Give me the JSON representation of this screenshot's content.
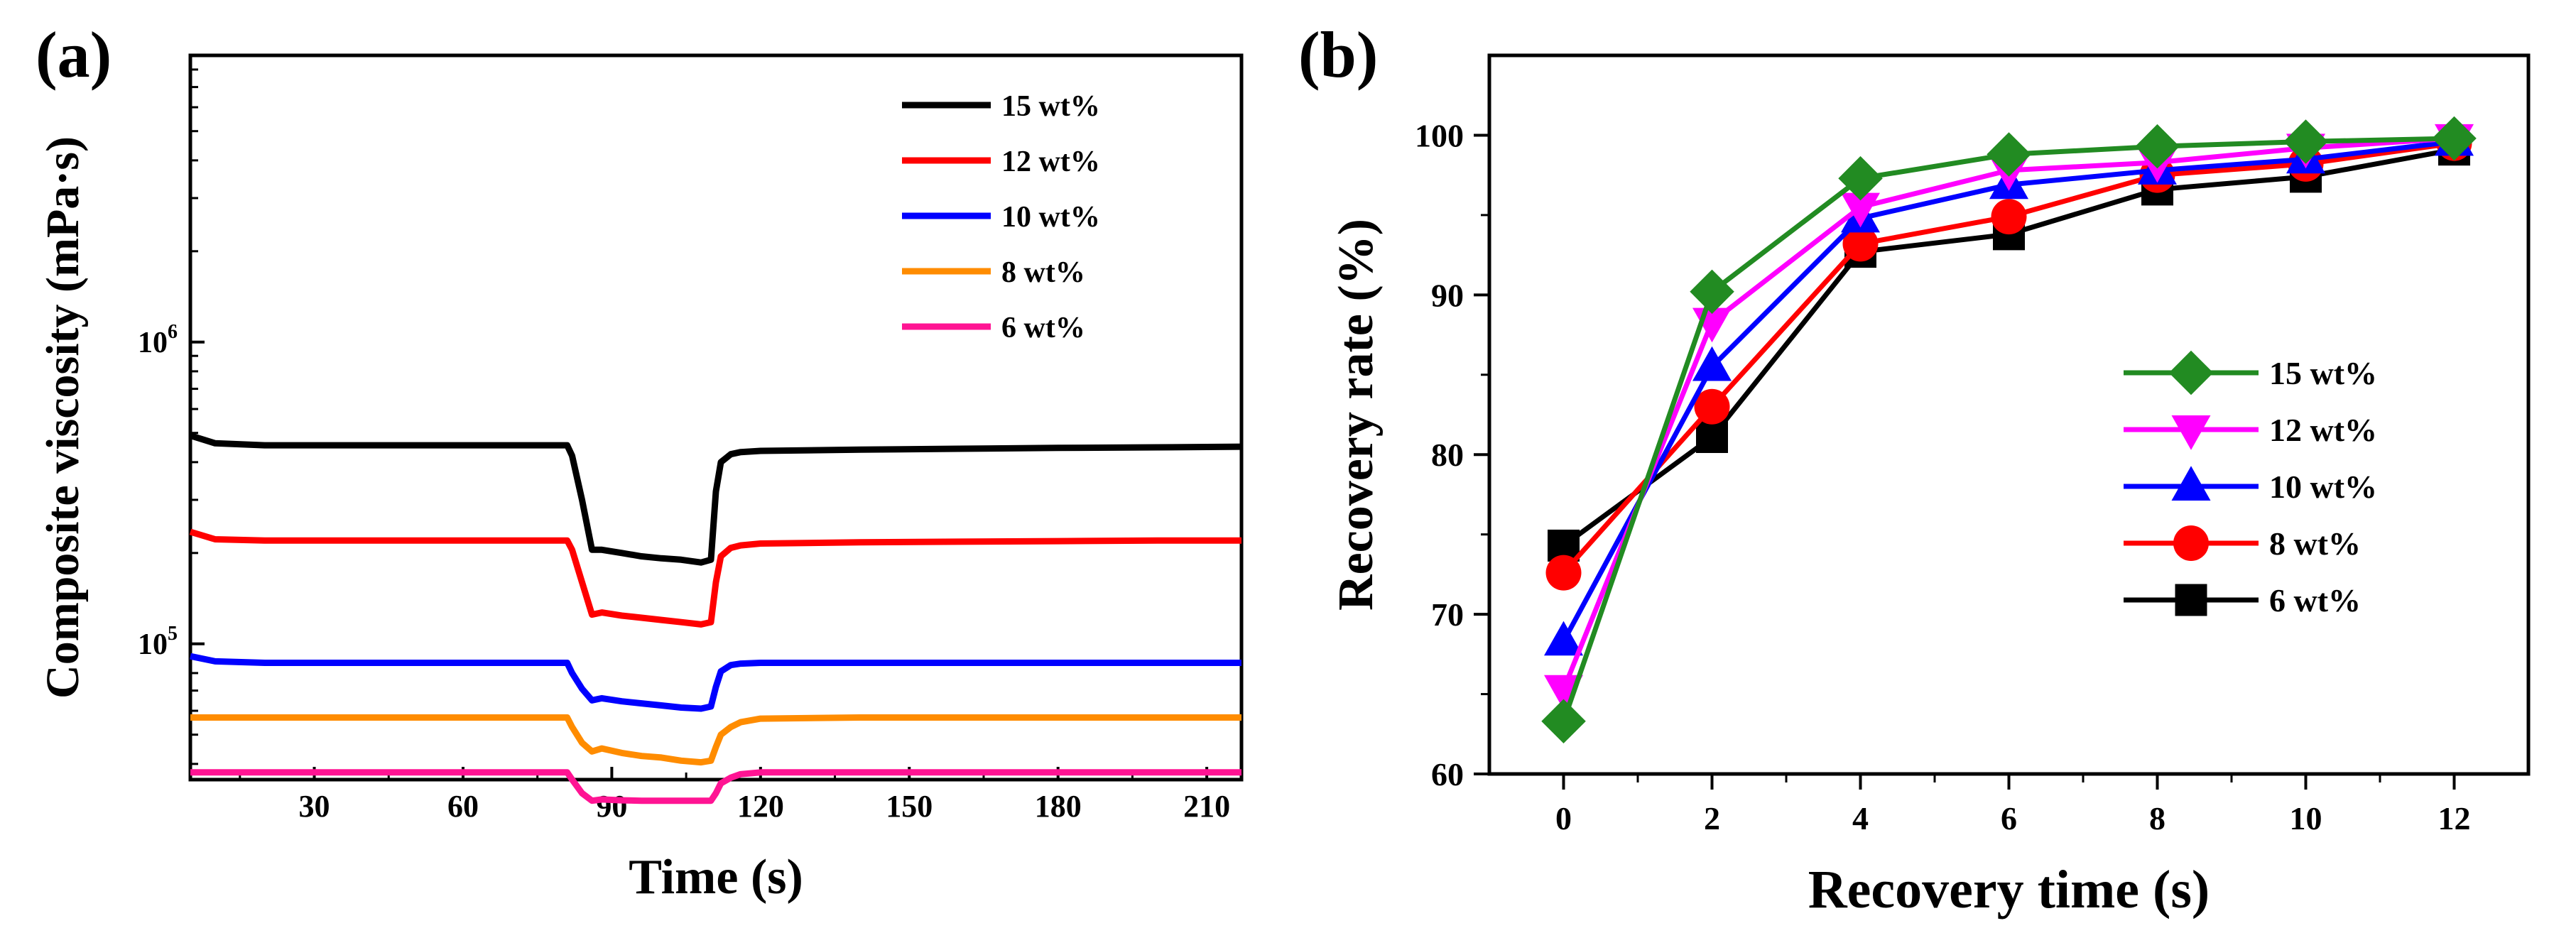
{
  "chart_data": [
    {
      "panel_label": "(a)",
      "type": "line",
      "title": "",
      "xlabel": "Time (s)",
      "ylabel": "Composite viscosity (mPa·s)",
      "xlim": [
        5,
        217
      ],
      "ylim_log10": [
        4.55,
        6.95
      ],
      "yscale": "log",
      "xticks": [
        30,
        60,
        90,
        120,
        150,
        180,
        210
      ],
      "xtick_labels": [
        "30",
        "60",
        "90",
        "120",
        "150",
        "180",
        "210"
      ],
      "yticks": [
        100000,
        1000000
      ],
      "ytick_labels": [
        {
          "base": "10",
          "exp": "5"
        },
        {
          "base": "10",
          "exp": "6"
        }
      ],
      "legend_position": "top-right",
      "series": [
        {
          "name": "15 wt%",
          "color": "#000000",
          "x": [
            5,
            10,
            20,
            40,
            60,
            81,
            82,
            84,
            86,
            88,
            92,
            96,
            100,
            104,
            108,
            110,
            111,
            112,
            114,
            116,
            120,
            140,
            160,
            180,
            200,
            217
          ],
          "y": [
            490000,
            462000,
            455000,
            455000,
            455000,
            455000,
            420000,
            300000,
            205000,
            205000,
            200000,
            195000,
            192000,
            190000,
            186000,
            190000,
            320000,
            400000,
            425000,
            432000,
            436000,
            440000,
            443000,
            446000,
            448000,
            450000
          ]
        },
        {
          "name": "12 wt%",
          "color": "#ff0000",
          "x": [
            5,
            10,
            20,
            40,
            60,
            81,
            82,
            84,
            86,
            88,
            92,
            96,
            100,
            104,
            108,
            110,
            111,
            112,
            114,
            116,
            120,
            140,
            160,
            180,
            200,
            217
          ],
          "y": [
            235000,
            222000,
            220000,
            220000,
            220000,
            220000,
            205000,
            160000,
            125000,
            127000,
            124000,
            122000,
            120000,
            118000,
            116000,
            118000,
            160000,
            195000,
            208000,
            212000,
            215000,
            217000,
            218000,
            219000,
            220000,
            220000
          ]
        },
        {
          "name": "10 wt%",
          "color": "#0000ff",
          "x": [
            5,
            10,
            20,
            40,
            60,
            81,
            82,
            84,
            86,
            88,
            92,
            96,
            100,
            104,
            108,
            110,
            111,
            112,
            114,
            116,
            120,
            140,
            160,
            180,
            200,
            217
          ],
          "y": [
            91000,
            87500,
            86500,
            86500,
            86500,
            86500,
            80000,
            71000,
            65000,
            66000,
            64500,
            63500,
            62500,
            61500,
            61000,
            62000,
            72000,
            81000,
            85000,
            86000,
            86500,
            86500,
            86500,
            86500,
            86500,
            86500
          ]
        },
        {
          "name": "8 wt%",
          "color": "#ff8c00",
          "x": [
            5,
            10,
            20,
            40,
            60,
            81,
            82,
            84,
            86,
            88,
            92,
            96,
            100,
            104,
            108,
            110,
            111,
            112,
            114,
            116,
            120,
            140,
            160,
            180,
            200,
            217
          ],
          "y": [
            57000,
            57000,
            57000,
            57000,
            57000,
            57000,
            53000,
            47000,
            44000,
            45000,
            43500,
            42500,
            42000,
            41000,
            40500,
            41000,
            45500,
            50000,
            53000,
            55000,
            56500,
            57000,
            57000,
            57000,
            57000,
            57000
          ]
        },
        {
          "name": "6 wt%",
          "color": "#ff1493",
          "x": [
            5,
            10,
            20,
            40,
            60,
            81,
            82,
            84,
            86,
            88,
            92,
            96,
            100,
            104,
            108,
            110,
            111,
            112,
            114,
            116,
            120,
            140,
            160,
            180,
            200,
            217
          ],
          "y": [
            37500,
            37500,
            37500,
            37500,
            37500,
            37500,
            35500,
            32000,
            30200,
            30500,
            30300,
            30200,
            30200,
            30200,
            30200,
            30200,
            32000,
            34500,
            36000,
            37000,
            37500,
            37500,
            37500,
            37500,
            37500,
            37500
          ]
        }
      ]
    },
    {
      "panel_label": "(b)",
      "type": "line",
      "title": "",
      "xlabel": "Recovery time (s)",
      "ylabel": "Recovery rate (%)",
      "xlim": [
        -1,
        13
      ],
      "ylim": [
        60,
        105
      ],
      "xticks": [
        0,
        2,
        4,
        6,
        8,
        10,
        12
      ],
      "yticks": [
        60,
        70,
        80,
        90,
        100
      ],
      "legend_position": "bottom-right",
      "series": [
        {
          "name": "15 wt%",
          "color": "#228b22",
          "marker": "diamond",
          "x": [
            0,
            2,
            4,
            6,
            8,
            10,
            12
          ],
          "y": [
            63.3,
            90.2,
            97.3,
            98.8,
            99.3,
            99.6,
            99.8
          ]
        },
        {
          "name": "12 wt%",
          "color": "#ff00ff",
          "marker": "triangle-down",
          "x": [
            0,
            2,
            4,
            6,
            8,
            10,
            12
          ],
          "y": [
            65.3,
            88.3,
            95.5,
            97.8,
            98.3,
            99.2,
            99.8
          ]
        },
        {
          "name": "10 wt%",
          "color": "#0000ff",
          "marker": "triangle-up",
          "x": [
            0,
            2,
            4,
            6,
            8,
            10,
            12
          ],
          "y": [
            68.3,
            85.5,
            94.8,
            96.9,
            97.8,
            98.5,
            99.6
          ]
        },
        {
          "name": "8 wt%",
          "color": "#ff0000",
          "marker": "circle",
          "x": [
            0,
            2,
            4,
            6,
            8,
            10,
            12
          ],
          "y": [
            72.6,
            83.0,
            93.2,
            94.9,
            97.5,
            98.2,
            99.5
          ]
        },
        {
          "name": "6 wt%",
          "color": "#000000",
          "marker": "square",
          "x": [
            0,
            2,
            4,
            6,
            8,
            10,
            12
          ],
          "y": [
            74.3,
            81.1,
            92.7,
            93.8,
            96.6,
            97.4,
            99.1
          ]
        }
      ]
    }
  ]
}
